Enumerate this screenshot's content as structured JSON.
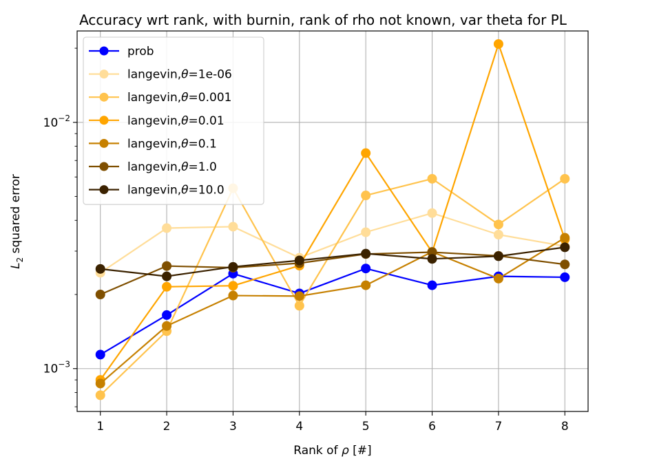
{
  "chart_data": {
    "type": "line",
    "title": "Accuracy wrt rank, with burnin, rank of rho not known, var theta for PL",
    "xlabel_prefix": "Rank of ",
    "xlabel_symbol": "ρ",
    "xlabel_suffix": " [#]",
    "ylabel_main": "L",
    "ylabel_sub": "2",
    "ylabel_rest": " squared error",
    "x": [
      1,
      2,
      3,
      4,
      5,
      6,
      7,
      8
    ],
    "x_tick_labels": [
      "1",
      "2",
      "3",
      "4",
      "5",
      "6",
      "7",
      "8"
    ],
    "xlim": [
      0.65,
      8.35
    ],
    "y_scale": "log",
    "ylim": [
      0.00067,
      0.0235
    ],
    "y_major_ticks": [
      {
        "value": 0.001,
        "base": "10",
        "exp": "−3"
      },
      {
        "value": 0.01,
        "base": "10",
        "exp": "−2"
      }
    ],
    "grid": true,
    "legend_position": "upper-left",
    "series": [
      {
        "name": "prob",
        "name_prefix": "prob",
        "name_symbol": "",
        "name_suffix": "",
        "color": "#0000ff",
        "values": [
          0.00114,
          0.00165,
          0.00243,
          0.00202,
          0.00255,
          0.00218,
          0.00237,
          0.00235
        ]
      },
      {
        "name": "langevin,θ=1e-06",
        "name_prefix": "langevin,",
        "name_symbol": "θ",
        "name_suffix": "=1e-06",
        "color": "#ffdd99",
        "values": [
          0.00245,
          0.00372,
          0.00377,
          0.00282,
          0.00358,
          0.00428,
          0.0035,
          0.00314
        ]
      },
      {
        "name": "langevin,θ=0.001",
        "name_prefix": "langevin,",
        "name_symbol": "θ",
        "name_suffix": "=0.001",
        "color": "#ffc34d",
        "values": [
          0.00078,
          0.00142,
          0.0054,
          0.0018,
          0.00505,
          0.0059,
          0.00385,
          0.0059
        ]
      },
      {
        "name": "langevin,θ=0.01",
        "name_prefix": "langevin,",
        "name_symbol": "θ",
        "name_suffix": "=0.01",
        "color": "#ffa500",
        "values": [
          0.0009,
          0.00215,
          0.00217,
          0.00262,
          0.0075,
          0.00297,
          0.0208,
          0.00335
        ]
      },
      {
        "name": "langevin,θ=0.1",
        "name_prefix": "langevin,",
        "name_symbol": "θ",
        "name_suffix": "=0.1",
        "color": "#c68000",
        "values": [
          0.00087,
          0.00149,
          0.00198,
          0.00197,
          0.00218,
          0.00298,
          0.00232,
          0.0034
        ]
      },
      {
        "name": "langevin,θ=1.0",
        "name_prefix": "langevin,",
        "name_symbol": "θ",
        "name_suffix": "=1.0",
        "color": "#7f4f00",
        "values": [
          0.002,
          0.00261,
          0.00257,
          0.00268,
          0.00292,
          0.00297,
          0.00287,
          0.00265
        ]
      },
      {
        "name": "langevin,θ=10.0",
        "name_prefix": "langevin,",
        "name_symbol": "θ",
        "name_suffix": "=10.0",
        "color": "#3b2200",
        "values": [
          0.00254,
          0.00237,
          0.00259,
          0.00275,
          0.00293,
          0.00279,
          0.00286,
          0.00311
        ]
      }
    ]
  }
}
